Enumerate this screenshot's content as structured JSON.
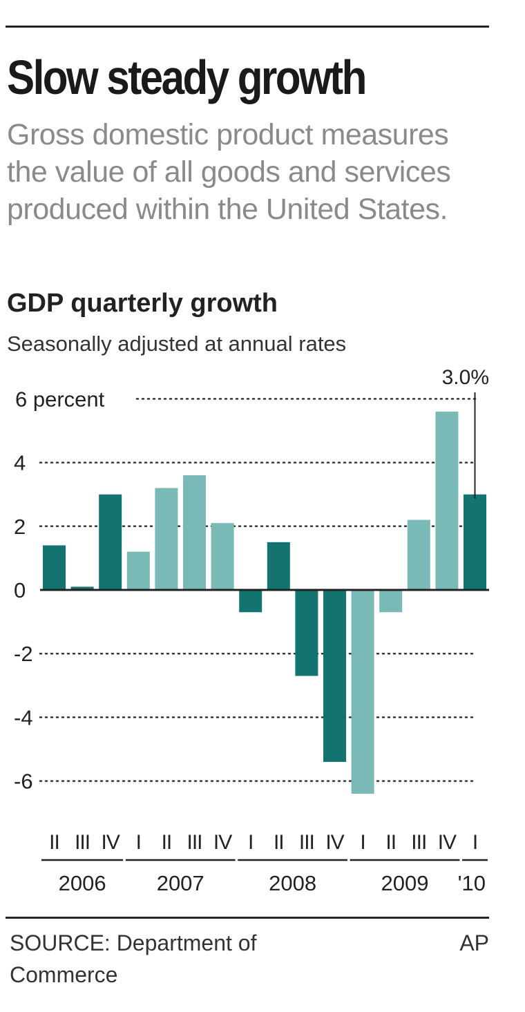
{
  "header": {
    "title": "Slow steady growth",
    "subtitle": "Gross domestic product measures the value of all goods and services produced within the United States."
  },
  "chart_data": {
    "type": "bar",
    "title": "GDP quarterly growth",
    "subtitle": "Seasonally adjusted at annual rates",
    "ylabel": "",
    "xlabel": "",
    "ylim": [
      -7,
      6
    ],
    "y_ticks": [
      6,
      4,
      2,
      0,
      -2,
      -4,
      -6
    ],
    "y_tick_labels": [
      "6 percent",
      "4",
      "2",
      "0",
      "-2",
      "-4",
      "-6"
    ],
    "grid": "dotted horizontal",
    "categories": [
      "2006 II",
      "2006 III",
      "2006 IV",
      "2007 I",
      "2007 II",
      "2007 III",
      "2007 IV",
      "2008 I",
      "2008 II",
      "2008 III",
      "2008 IV",
      "2009 I",
      "2009 II",
      "2009 III",
      "2009 IV",
      "'10 I"
    ],
    "quarter_labels": [
      "II",
      "III",
      "IV",
      "I",
      "II",
      "III",
      "IV",
      "I",
      "II",
      "III",
      "IV",
      "I",
      "II",
      "III",
      "IV",
      "I"
    ],
    "values": [
      1.4,
      0.1,
      3.0,
      1.2,
      3.2,
      3.6,
      2.1,
      -0.7,
      1.5,
      -2.7,
      -5.4,
      -6.4,
      -0.7,
      2.2,
      5.6,
      3.0
    ],
    "bar_colors": [
      "#12736f",
      "#12736f",
      "#12736f",
      "#79b9b6",
      "#79b9b6",
      "#79b9b6",
      "#79b9b6",
      "#12736f",
      "#12736f",
      "#12736f",
      "#12736f",
      "#79b9b6",
      "#79b9b6",
      "#79b9b6",
      "#79b9b6",
      "#12736f"
    ],
    "year_groups": [
      {
        "label": "2006",
        "first": 0,
        "last": 2
      },
      {
        "label": "2007",
        "first": 3,
        "last": 6
      },
      {
        "label": "2008",
        "first": 7,
        "last": 10
      },
      {
        "label": "2009",
        "first": 11,
        "last": 14
      },
      {
        "label": "'10",
        "first": 15,
        "last": 15
      }
    ],
    "annotation": {
      "text": "3.0%",
      "index": 15,
      "value": 3.0
    }
  },
  "footer": {
    "source": "SOURCE: Department of Commerce",
    "credit": "AP"
  },
  "colors": {
    "dark_teal": "#12736f",
    "light_teal": "#79b9b6",
    "text": "#222222",
    "subtitle_gray": "#8a8a8a"
  }
}
